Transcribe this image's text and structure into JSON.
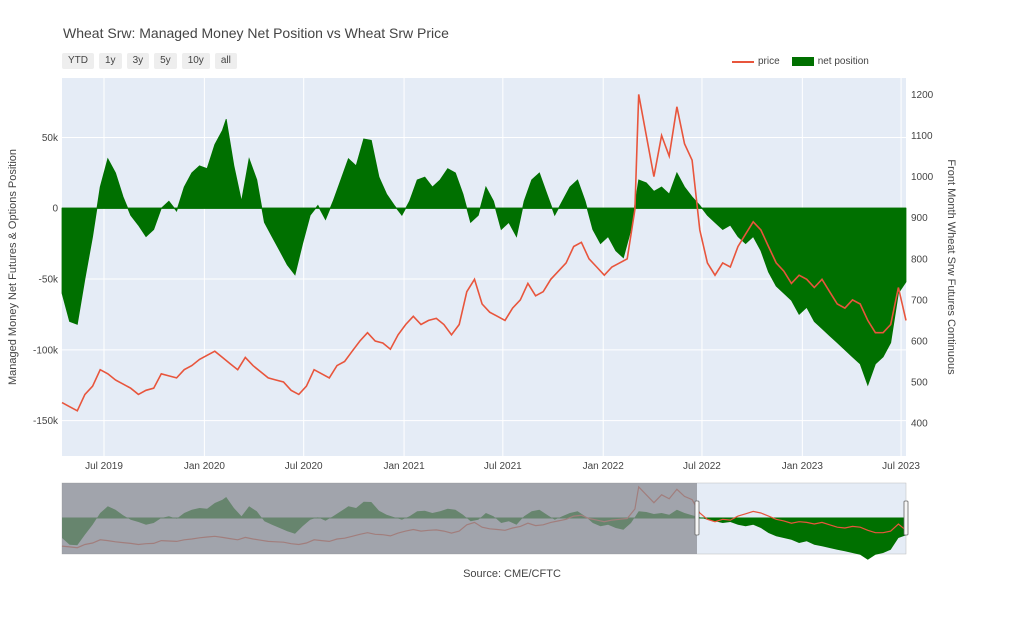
{
  "title": "Wheat Srw: Managed Money Net Position vs Wheat Srw Price",
  "range_buttons": [
    "YTD",
    "1y",
    "3y",
    "5y",
    "10y",
    "all"
  ],
  "legend": {
    "price": "price",
    "net": "net position"
  },
  "source": "Source: CME/CFTC",
  "colors": {
    "price": "#e8553c",
    "net": "#007000",
    "plot_bg": "#e5ecf6",
    "grid": "#ffffff",
    "slider_mask": "#8a8c93"
  },
  "chart_data": {
    "type": "area",
    "title": "Wheat Srw: Managed Money Net Position vs Wheat Srw Price",
    "xlabel": "",
    "ylabel": "Managed Money Net Futures & Options Position",
    "y2label": "Front Month Wheat Srw Futures Continuous",
    "x_range": [
      "2019-04-15",
      "2023-07-10"
    ],
    "x_ticks": [
      {
        "date": "2019-07-01",
        "label": "Jul 2019"
      },
      {
        "date": "2020-01-01",
        "label": "Jan 2020"
      },
      {
        "date": "2020-07-01",
        "label": "Jul 2020"
      },
      {
        "date": "2021-01-01",
        "label": "Jan 2021"
      },
      {
        "date": "2021-07-01",
        "label": "Jul 2021"
      },
      {
        "date": "2022-01-01",
        "label": "Jan 2022"
      },
      {
        "date": "2022-07-01",
        "label": "Jul 2022"
      },
      {
        "date": "2023-01-01",
        "label": "Jan 2023"
      },
      {
        "date": "2023-07-01",
        "label": "Jul 2023"
      }
    ],
    "ylim": [
      -175000,
      92000
    ],
    "y_ticks": [
      {
        "value": 50000,
        "label": "50k"
      },
      {
        "value": 0,
        "label": "0"
      },
      {
        "value": -50000,
        "label": "-50k"
      },
      {
        "value": -100000,
        "label": "-100k"
      },
      {
        "value": -150000,
        "label": "-150k"
      }
    ],
    "y2lim": [
      320,
      1240
    ],
    "y2_ticks": [
      400,
      500,
      600,
      700,
      800,
      900,
      1000,
      1100,
      1200
    ],
    "grid": true,
    "legend_position": "top-right",
    "series": [
      {
        "name": "net position",
        "axis": "y",
        "kind": "area",
        "points": [
          [
            "2019-04-15",
            -60000
          ],
          [
            "2019-04-29",
            -80000
          ],
          [
            "2019-05-13",
            -82000
          ],
          [
            "2019-05-27",
            -50000
          ],
          [
            "2019-06-10",
            -20000
          ],
          [
            "2019-06-24",
            15000
          ],
          [
            "2019-07-08",
            35000
          ],
          [
            "2019-07-22",
            25000
          ],
          [
            "2019-08-05",
            8000
          ],
          [
            "2019-08-19",
            -5000
          ],
          [
            "2019-09-02",
            -12000
          ],
          [
            "2019-09-16",
            -20000
          ],
          [
            "2019-09-30",
            -15000
          ],
          [
            "2019-10-14",
            0
          ],
          [
            "2019-10-28",
            5000
          ],
          [
            "2019-11-11",
            -2000
          ],
          [
            "2019-11-25",
            15000
          ],
          [
            "2019-12-09",
            25000
          ],
          [
            "2019-12-23",
            30000
          ],
          [
            "2020-01-06",
            28000
          ],
          [
            "2020-01-20",
            45000
          ],
          [
            "2020-02-03",
            55000
          ],
          [
            "2020-02-10",
            63000
          ],
          [
            "2020-02-24",
            30000
          ],
          [
            "2020-03-09",
            5000
          ],
          [
            "2020-03-23",
            35000
          ],
          [
            "2020-04-06",
            20000
          ],
          [
            "2020-04-20",
            -10000
          ],
          [
            "2020-05-04",
            -20000
          ],
          [
            "2020-05-18",
            -30000
          ],
          [
            "2020-06-01",
            -40000
          ],
          [
            "2020-06-15",
            -47000
          ],
          [
            "2020-06-29",
            -25000
          ],
          [
            "2020-07-13",
            -5000
          ],
          [
            "2020-07-27",
            2000
          ],
          [
            "2020-08-10",
            -8000
          ],
          [
            "2020-08-24",
            5000
          ],
          [
            "2020-09-07",
            20000
          ],
          [
            "2020-09-21",
            35000
          ],
          [
            "2020-10-05",
            30000
          ],
          [
            "2020-10-19",
            49000
          ],
          [
            "2020-11-02",
            48000
          ],
          [
            "2020-11-16",
            22000
          ],
          [
            "2020-11-30",
            10000
          ],
          [
            "2020-12-14",
            2000
          ],
          [
            "2020-12-28",
            -5000
          ],
          [
            "2021-01-11",
            5000
          ],
          [
            "2021-01-25",
            20000
          ],
          [
            "2021-02-08",
            22000
          ],
          [
            "2021-02-22",
            15000
          ],
          [
            "2021-03-08",
            20000
          ],
          [
            "2021-03-22",
            28000
          ],
          [
            "2021-04-05",
            25000
          ],
          [
            "2021-04-19",
            10000
          ],
          [
            "2021-05-03",
            -10000
          ],
          [
            "2021-05-17",
            -5000
          ],
          [
            "2021-05-31",
            15000
          ],
          [
            "2021-06-14",
            5000
          ],
          [
            "2021-06-28",
            -15000
          ],
          [
            "2021-07-12",
            -10000
          ],
          [
            "2021-07-26",
            -20000
          ],
          [
            "2021-08-09",
            5000
          ],
          [
            "2021-08-23",
            20000
          ],
          [
            "2021-09-06",
            25000
          ],
          [
            "2021-09-20",
            10000
          ],
          [
            "2021-10-04",
            -5000
          ],
          [
            "2021-10-18",
            5000
          ],
          [
            "2021-11-01",
            15000
          ],
          [
            "2021-11-15",
            20000
          ],
          [
            "2021-11-29",
            5000
          ],
          [
            "2021-12-13",
            -15000
          ],
          [
            "2021-12-27",
            -25000
          ],
          [
            "2022-01-10",
            -20000
          ],
          [
            "2022-01-24",
            -30000
          ],
          [
            "2022-02-07",
            -35000
          ],
          [
            "2022-02-21",
            -15000
          ],
          [
            "2022-03-07",
            20000
          ],
          [
            "2022-03-21",
            18000
          ],
          [
            "2022-04-04",
            12000
          ],
          [
            "2022-04-18",
            15000
          ],
          [
            "2022-05-02",
            10000
          ],
          [
            "2022-05-16",
            25000
          ],
          [
            "2022-05-30",
            15000
          ],
          [
            "2022-06-13",
            8000
          ],
          [
            "2022-06-27",
            2000
          ],
          [
            "2022-07-11",
            -5000
          ],
          [
            "2022-07-25",
            -10000
          ],
          [
            "2022-08-08",
            -15000
          ],
          [
            "2022-08-22",
            -12000
          ],
          [
            "2022-09-05",
            -20000
          ],
          [
            "2022-09-19",
            -25000
          ],
          [
            "2022-10-03",
            -20000
          ],
          [
            "2022-10-17",
            -30000
          ],
          [
            "2022-10-31",
            -45000
          ],
          [
            "2022-11-14",
            -55000
          ],
          [
            "2022-11-28",
            -60000
          ],
          [
            "2022-12-12",
            -65000
          ],
          [
            "2022-12-26",
            -75000
          ],
          [
            "2023-01-09",
            -70000
          ],
          [
            "2023-01-23",
            -80000
          ],
          [
            "2023-02-06",
            -85000
          ],
          [
            "2023-02-20",
            -90000
          ],
          [
            "2023-03-06",
            -95000
          ],
          [
            "2023-03-20",
            -100000
          ],
          [
            "2023-04-03",
            -105000
          ],
          [
            "2023-04-17",
            -110000
          ],
          [
            "2023-05-01",
            -125000
          ],
          [
            "2023-05-15",
            -110000
          ],
          [
            "2023-05-29",
            -105000
          ],
          [
            "2023-06-12",
            -95000
          ],
          [
            "2023-06-26",
            -60000
          ],
          [
            "2023-07-10",
            -52000
          ]
        ]
      },
      {
        "name": "price",
        "axis": "y2",
        "kind": "line",
        "points": [
          [
            "2019-04-15",
            450
          ],
          [
            "2019-04-29",
            440
          ],
          [
            "2019-05-13",
            430
          ],
          [
            "2019-05-27",
            470
          ],
          [
            "2019-06-10",
            490
          ],
          [
            "2019-06-24",
            530
          ],
          [
            "2019-07-08",
            520
          ],
          [
            "2019-07-22",
            505
          ],
          [
            "2019-08-05",
            495
          ],
          [
            "2019-08-19",
            485
          ],
          [
            "2019-09-02",
            470
          ],
          [
            "2019-09-16",
            480
          ],
          [
            "2019-09-30",
            485
          ],
          [
            "2019-10-14",
            520
          ],
          [
            "2019-10-28",
            515
          ],
          [
            "2019-11-11",
            510
          ],
          [
            "2019-11-25",
            530
          ],
          [
            "2019-12-09",
            540
          ],
          [
            "2019-12-23",
            555
          ],
          [
            "2020-01-06",
            565
          ],
          [
            "2020-01-20",
            575
          ],
          [
            "2020-02-03",
            560
          ],
          [
            "2020-02-17",
            545
          ],
          [
            "2020-03-02",
            530
          ],
          [
            "2020-03-16",
            560
          ],
          [
            "2020-03-30",
            540
          ],
          [
            "2020-04-13",
            525
          ],
          [
            "2020-04-27",
            510
          ],
          [
            "2020-05-11",
            505
          ],
          [
            "2020-05-25",
            500
          ],
          [
            "2020-06-08",
            480
          ],
          [
            "2020-06-22",
            470
          ],
          [
            "2020-07-06",
            490
          ],
          [
            "2020-07-20",
            530
          ],
          [
            "2020-08-03",
            520
          ],
          [
            "2020-08-17",
            510
          ],
          [
            "2020-08-31",
            540
          ],
          [
            "2020-09-14",
            550
          ],
          [
            "2020-09-28",
            575
          ],
          [
            "2020-10-12",
            600
          ],
          [
            "2020-10-26",
            620
          ],
          [
            "2020-11-09",
            600
          ],
          [
            "2020-11-23",
            595
          ],
          [
            "2020-12-07",
            580
          ],
          [
            "2020-12-21",
            615
          ],
          [
            "2021-01-04",
            640
          ],
          [
            "2021-01-18",
            660
          ],
          [
            "2021-02-01",
            640
          ],
          [
            "2021-02-15",
            650
          ],
          [
            "2021-03-01",
            655
          ],
          [
            "2021-03-15",
            640
          ],
          [
            "2021-03-29",
            615
          ],
          [
            "2021-04-12",
            640
          ],
          [
            "2021-04-26",
            720
          ],
          [
            "2021-05-10",
            750
          ],
          [
            "2021-05-24",
            690
          ],
          [
            "2021-06-07",
            670
          ],
          [
            "2021-06-21",
            660
          ],
          [
            "2021-07-05",
            650
          ],
          [
            "2021-07-19",
            680
          ],
          [
            "2021-08-02",
            700
          ],
          [
            "2021-08-16",
            740
          ],
          [
            "2021-08-30",
            710
          ],
          [
            "2021-09-13",
            720
          ],
          [
            "2021-09-27",
            750
          ],
          [
            "2021-10-11",
            770
          ],
          [
            "2021-10-25",
            790
          ],
          [
            "2021-11-08",
            830
          ],
          [
            "2021-11-22",
            840
          ],
          [
            "2021-12-06",
            800
          ],
          [
            "2021-12-20",
            780
          ],
          [
            "2022-01-03",
            760
          ],
          [
            "2022-01-17",
            780
          ],
          [
            "2022-01-31",
            790
          ],
          [
            "2022-02-14",
            800
          ],
          [
            "2022-02-28",
            920
          ],
          [
            "2022-03-07",
            1200
          ],
          [
            "2022-03-21",
            1100
          ],
          [
            "2022-04-04",
            1000
          ],
          [
            "2022-04-18",
            1100
          ],
          [
            "2022-05-02",
            1050
          ],
          [
            "2022-05-16",
            1170
          ],
          [
            "2022-05-30",
            1080
          ],
          [
            "2022-06-13",
            1040
          ],
          [
            "2022-06-27",
            870
          ],
          [
            "2022-07-11",
            790
          ],
          [
            "2022-07-25",
            760
          ],
          [
            "2022-08-08",
            790
          ],
          [
            "2022-08-22",
            780
          ],
          [
            "2022-09-05",
            830
          ],
          [
            "2022-09-19",
            860
          ],
          [
            "2022-10-03",
            890
          ],
          [
            "2022-10-17",
            870
          ],
          [
            "2022-10-31",
            830
          ],
          [
            "2022-11-14",
            790
          ],
          [
            "2022-11-28",
            770
          ],
          [
            "2022-12-12",
            740
          ],
          [
            "2022-12-26",
            760
          ],
          [
            "2023-01-09",
            750
          ],
          [
            "2023-01-23",
            730
          ],
          [
            "2023-02-06",
            750
          ],
          [
            "2023-02-20",
            720
          ],
          [
            "2023-03-06",
            690
          ],
          [
            "2023-03-20",
            680
          ],
          [
            "2023-04-03",
            700
          ],
          [
            "2023-04-17",
            690
          ],
          [
            "2023-05-01",
            650
          ],
          [
            "2023-05-15",
            620
          ],
          [
            "2023-05-29",
            620
          ],
          [
            "2023-06-12",
            640
          ],
          [
            "2023-06-26",
            730
          ],
          [
            "2023-07-03",
            690
          ],
          [
            "2023-07-10",
            650
          ]
        ]
      }
    ]
  }
}
